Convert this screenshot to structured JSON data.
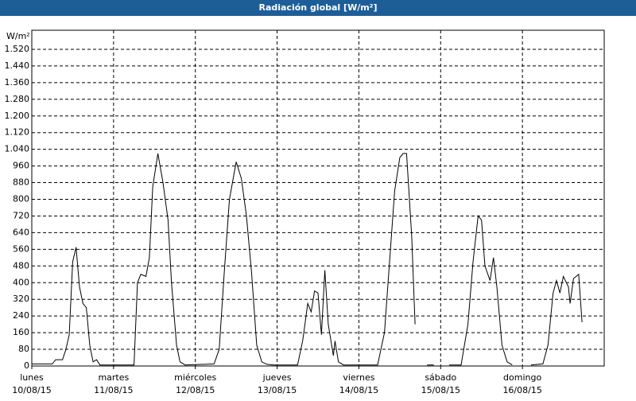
{
  "chart_data": {
    "type": "line",
    "title": "Radiación global [W/m²]",
    "y_label": "W/m²",
    "x": [
      0,
      6,
      7,
      9,
      10,
      11,
      12,
      13,
      14,
      15,
      16,
      17,
      18,
      19,
      20,
      30,
      31,
      32,
      33.5,
      34.5,
      35.5,
      37,
      38.5,
      40,
      41,
      42.5,
      43.5,
      45,
      53.5,
      55,
      56.5,
      58,
      60,
      61.5,
      63,
      64.5,
      66,
      67.5,
      69,
      71,
      78,
      79.5,
      81,
      82,
      83,
      84,
      85,
      86,
      87,
      88.5,
      89,
      90,
      91.5,
      101.5,
      103.5,
      105,
      106.5,
      108,
      109,
      110,
      111.5,
      112.5,
      114,
      116,
      118,
      120,
      122.5,
      126,
      128,
      129.5,
      131,
      132,
      133,
      134.5,
      135.5,
      136.5,
      138,
      139.5,
      141,
      143.5,
      146.5,
      150,
      151.5,
      153,
      154,
      155,
      156,
      157.5,
      158,
      159,
      160.5,
      161.5
    ],
    "series": [
      {
        "name": "Radiación global",
        "color": "#000000",
        "values": [
          10,
          10,
          30,
          30,
          80,
          150,
          500,
          570,
          380,
          300,
          280,
          100,
          20,
          30,
          5,
          5,
          400,
          440,
          430,
          520,
          860,
          1020,
          880,
          700,
          400,
          100,
          20,
          5,
          10,
          80,
          450,
          800,
          980,
          900,
          720,
          450,
          100,
          20,
          8,
          5,
          5,
          120,
          300,
          260,
          360,
          350,
          150,
          460,
          200,
          50,
          120,
          20,
          5,
          5,
          160,
          500,
          840,
          1000,
          1020,
          1020,
          620,
          200,
          null,
          5,
          5,
          null,
          5,
          5,
          200,
          500,
          720,
          700,
          480,
          410,
          520,
          380,
          100,
          20,
          5,
          null,
          5,
          10,
          100,
          350,
          410,
          350,
          430,
          380,
          300,
          420,
          440,
          210
        ]
      }
    ],
    "xlim": [
      0,
      168
    ],
    "xticks": [
      {
        "value": 0,
        "label": "lunes"
      },
      {
        "value": 24,
        "label": "martes"
      },
      {
        "value": 48,
        "label": "miércoles"
      },
      {
        "value": 72,
        "label": "jueves"
      },
      {
        "value": 96,
        "label": "viernes"
      },
      {
        "value": 120,
        "label": "sábado"
      },
      {
        "value": 144,
        "label": "domingo"
      }
    ],
    "xtick_dates": [
      "10/08/15",
      "11/08/15",
      "12/08/15",
      "13/08/15",
      "14/08/15",
      "15/08/15",
      "16/08/15"
    ],
    "ylim": [
      0,
      1600
    ],
    "yticks": [
      0,
      80,
      160,
      240,
      320,
      400,
      480,
      560,
      640,
      720,
      800,
      880,
      960,
      {
        "value": 1040,
        "label": "1.040"
      },
      {
        "value": 1120,
        "label": "1.120"
      },
      {
        "value": 1200,
        "label": "1.200"
      },
      {
        "value": 1280,
        "label": "1.280"
      },
      {
        "value": 1360,
        "label": "1.360"
      },
      {
        "value": 1440,
        "label": "1.440"
      },
      {
        "value": 1520,
        "label": "1.520"
      }
    ],
    "grid": true
  }
}
